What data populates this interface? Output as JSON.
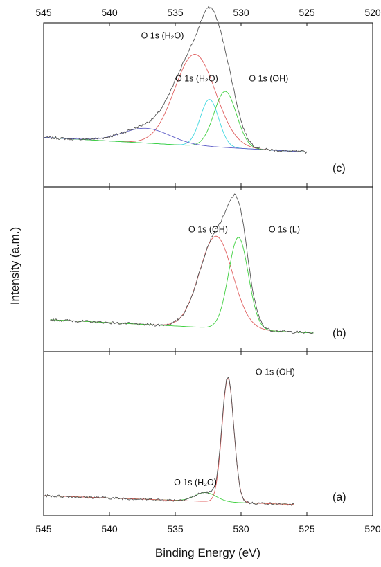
{
  "chart_data": {
    "type": "line",
    "xlabel": "Binding Energy (eV)",
    "ylabel": "Intensity (a.m.)",
    "xlim": [
      545,
      520
    ],
    "x_ticks": [
      545,
      540,
      535,
      530,
      525,
      520
    ],
    "x_tick_labels": [
      "545",
      "540",
      "535",
      "530",
      "525",
      "520"
    ],
    "top_axis_tick_labels": [
      "545",
      "540",
      "535",
      "530",
      "525",
      "520"
    ],
    "grid": false,
    "colors": {
      "measured": "#555555",
      "h2o": "#e06060",
      "h2o_alt": "#e06060",
      "oh": "#40d040",
      "lattice": "#40d040",
      "cyan": "#40d8e0",
      "blue": "#6060c8",
      "background": "#40d040"
    },
    "panels": [
      {
        "label": "(c)",
        "x_range": [
          545,
          525
        ],
        "ylim": [
          0,
          1
        ],
        "background": {
          "x": [
            545,
            525
          ],
          "values": [
            0.28,
            0.18
          ]
        },
        "components": [
          {
            "label": "O 1s (H₂O)",
            "label_x": 537.6,
            "label_y": 0.95,
            "center": 533.5,
            "height": 0.62,
            "width": 1.55,
            "color_key": "h2o"
          },
          {
            "label": "O 1s (H₂O)",
            "label_x": 535.0,
            "label_y": 0.66,
            "center": 532.4,
            "height": 0.32,
            "width": 0.7,
            "color_key": "cyan"
          },
          {
            "label": "O 1s (OH)",
            "label_x": 529.4,
            "label_y": 0.66,
            "center": 531.2,
            "height": 0.38,
            "width": 0.85,
            "color_key": "oh"
          },
          {
            "label": "",
            "center": 537.2,
            "height": 0.1,
            "width": 1.8,
            "color_key": "blue"
          }
        ]
      },
      {
        "label": "(b)",
        "x_range": [
          544.5,
          524.5
        ],
        "ylim": [
          0,
          1
        ],
        "background": {
          "x": [
            544.5,
            524.5
          ],
          "values": [
            0.16,
            0.07
          ]
        },
        "components": [
          {
            "label": "O 1s (OH)",
            "label_x": 534.0,
            "label_y": 0.75,
            "center": 531.9,
            "height": 0.62,
            "width": 1.25,
            "color_key": "h2o_alt"
          },
          {
            "label": "O 1s (L)",
            "label_x": 527.9,
            "label_y": 0.75,
            "center": 530.2,
            "height": 0.62,
            "width": 0.75,
            "color_key": "lattice"
          }
        ]
      },
      {
        "label": "(a)",
        "x_range": [
          545,
          526
        ],
        "ylim": [
          0,
          1
        ],
        "background": {
          "x": [
            545,
            526
          ],
          "values": [
            0.08,
            0.02
          ]
        },
        "components": [
          {
            "label": "O 1s (H₂O)",
            "label_x": 535.1,
            "label_y": 0.15,
            "center": 532.7,
            "height": 0.06,
            "width": 0.8,
            "color_key": "background"
          },
          {
            "label": "O 1s (OH)",
            "label_x": 528.9,
            "label_y": 0.9,
            "center": 531.0,
            "height": 0.84,
            "width": 0.45,
            "color_key": "h2o"
          }
        ]
      }
    ]
  }
}
